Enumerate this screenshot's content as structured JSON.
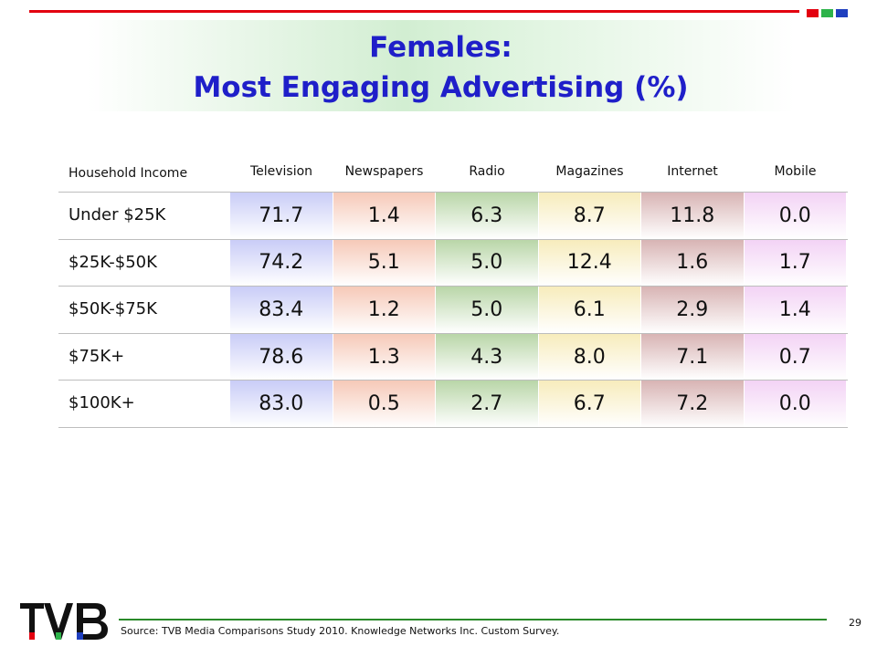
{
  "title": [
    "Females:",
    "Most Engaging Advertising (%)"
  ],
  "colors": {
    "title": "#1f1fc9",
    "accent_red": "#e3000f",
    "accent_green": "#2db34a",
    "accent_blue": "#1f3fbf"
  },
  "chart_data": {
    "type": "table",
    "row_header": "Household Income",
    "columns": [
      "Television",
      "Newspapers",
      "Radio",
      "Magazines",
      "Internet",
      "Mobile"
    ],
    "column_colors": [
      "#c9ccf7",
      "#f6c9b8",
      "#b9d6a8",
      "#f7ecbc",
      "#d8b4b4",
      "#f3d3f5"
    ],
    "rows": [
      {
        "label": "Under $25K",
        "values": [
          "71.7",
          "1.4",
          "6.3",
          "8.7",
          "11.8",
          "0.0"
        ]
      },
      {
        "label": "$25K-$50K",
        "values": [
          "74.2",
          "5.1",
          "5.0",
          "12.4",
          "1.6",
          "1.7"
        ]
      },
      {
        "label": "$50K-$75K",
        "values": [
          "83.4",
          "1.2",
          "5.0",
          "6.1",
          "2.9",
          "1.4"
        ]
      },
      {
        "label": "$75K+",
        "values": [
          "78.6",
          "1.3",
          "4.3",
          "8.0",
          "7.1",
          "0.7"
        ]
      },
      {
        "label": "$100K+",
        "values": [
          "83.0",
          "0.5",
          "2.7",
          "6.7",
          "7.2",
          "0.0"
        ]
      }
    ]
  },
  "footer": {
    "source": "Source: TVB Media Comparisons Study 2010.  Knowledge Networks Inc. Custom Survey.",
    "page_number": "29",
    "logo_text": "TVB"
  }
}
